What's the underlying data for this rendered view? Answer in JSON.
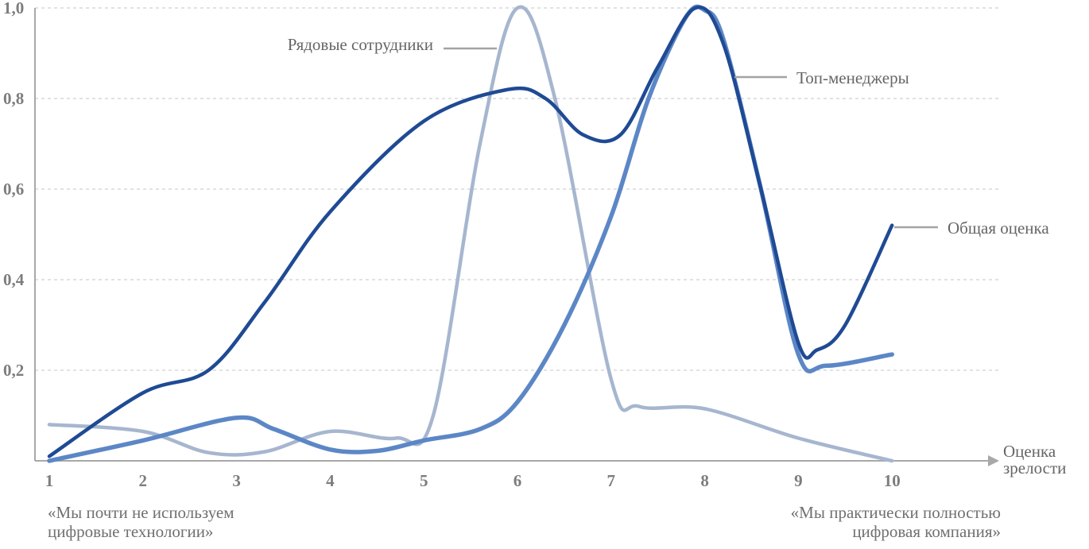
{
  "chart_data": {
    "type": "line",
    "x": [
      1,
      2,
      3,
      4,
      5,
      6,
      7,
      8,
      9,
      10
    ],
    "yticks": [
      "0,2",
      "0,4",
      "0,6",
      "0,8",
      "1,0"
    ],
    "xlabel": "Оценка зрелости",
    "xlabel_lines": [
      "Оценка",
      "зрелости"
    ],
    "ylim": [
      0,
      1.0
    ],
    "grid": true,
    "left_note": [
      "«Мы почти не используем",
      "цифровые технологии»"
    ],
    "right_note": [
      "«Мы практически полностью",
      "цифровая компания»"
    ],
    "series": [
      {
        "name": "Рядовые сотрудники",
        "color": "#a7b6cf",
        "width": 4.5,
        "points": [
          [
            1,
            0.08
          ],
          [
            2,
            0.065
          ],
          [
            2.7,
            0.018
          ],
          [
            3.3,
            0.02
          ],
          [
            4,
            0.065
          ],
          [
            4.7,
            0.05
          ],
          [
            5.1,
            0.1
          ],
          [
            5.6,
            0.7
          ],
          [
            6,
            1.0
          ],
          [
            6.4,
            0.8
          ],
          [
            7,
            0.18
          ],
          [
            7.3,
            0.12
          ],
          [
            8,
            0.115
          ],
          [
            9,
            0.05
          ],
          [
            10,
            0.0
          ]
        ]
      },
      {
        "name": "Топ-менеджеры",
        "color": "#5c87c6",
        "width": 5.5,
        "points": [
          [
            1,
            0.0
          ],
          [
            2,
            0.045
          ],
          [
            3,
            0.095
          ],
          [
            3.4,
            0.07
          ],
          [
            4,
            0.025
          ],
          [
            4.5,
            0.022
          ],
          [
            5,
            0.045
          ],
          [
            5.6,
            0.07
          ],
          [
            6,
            0.13
          ],
          [
            6.5,
            0.3
          ],
          [
            7,
            0.54
          ],
          [
            7.4,
            0.8
          ],
          [
            7.8,
            0.98
          ],
          [
            8,
            0.995
          ],
          [
            8.2,
            0.93
          ],
          [
            8.6,
            0.6
          ],
          [
            9,
            0.235
          ],
          [
            9.3,
            0.21
          ],
          [
            10,
            0.235
          ]
        ]
      },
      {
        "name": "Общая оценка",
        "color": "#1f4a94",
        "width": 4.5,
        "points": [
          [
            1,
            0.01
          ],
          [
            2,
            0.15
          ],
          [
            2.7,
            0.2
          ],
          [
            3.3,
            0.35
          ],
          [
            4,
            0.55
          ],
          [
            5,
            0.75
          ],
          [
            5.9,
            0.82
          ],
          [
            6.3,
            0.8
          ],
          [
            6.7,
            0.72
          ],
          [
            7.1,
            0.72
          ],
          [
            7.5,
            0.87
          ],
          [
            7.9,
            1.0
          ],
          [
            8.2,
            0.92
          ],
          [
            8.6,
            0.6
          ],
          [
            9,
            0.26
          ],
          [
            9.2,
            0.245
          ],
          [
            9.5,
            0.3
          ],
          [
            10,
            0.52
          ]
        ]
      }
    ]
  }
}
